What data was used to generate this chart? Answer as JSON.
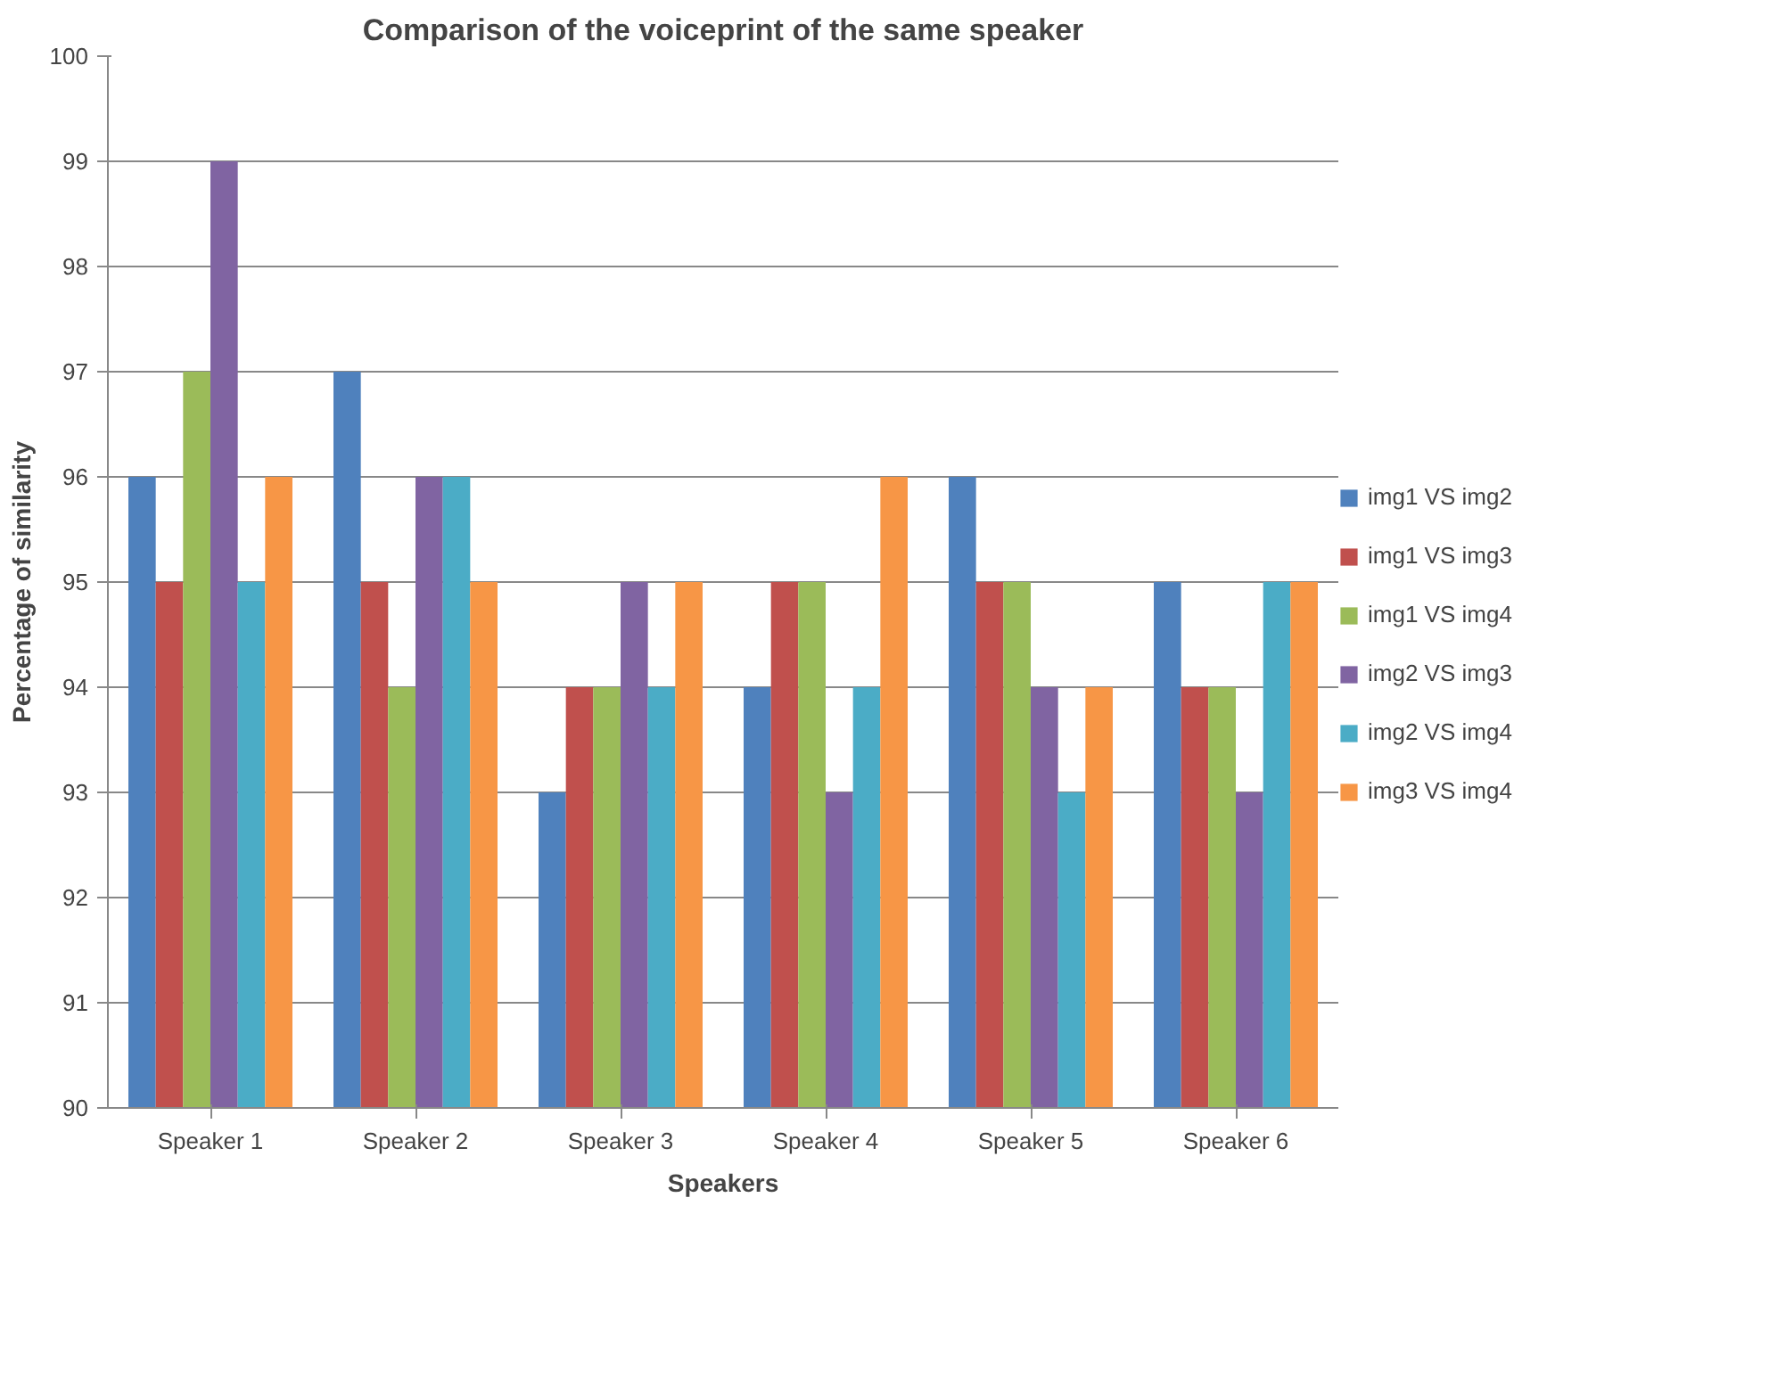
{
  "chart_data": {
    "type": "bar",
    "title": "Comparison of the voiceprint of the same speaker",
    "xlabel": "Speakers",
    "ylabel": "Percentage of similarity",
    "categories": [
      "Speaker 1",
      "Speaker 2",
      "Speaker 3",
      "Speaker 4",
      "Speaker 5",
      "Speaker 6"
    ],
    "series": [
      {
        "name": "img1 VS img2",
        "color": "#4f81bd",
        "values": [
          96,
          97,
          93,
          94,
          96,
          95
        ]
      },
      {
        "name": "img1 VS img3",
        "color": "#c0504d",
        "values": [
          95,
          95,
          94,
          95,
          95,
          94
        ]
      },
      {
        "name": "img1 VS img4",
        "color": "#9bbb59",
        "values": [
          97,
          94,
          94,
          95,
          95,
          94
        ]
      },
      {
        "name": "img2 VS img3",
        "color": "#8064a2",
        "values": [
          99,
          96,
          95,
          93,
          94,
          93
        ]
      },
      {
        "name": "img2 VS img4",
        "color": "#4bacc6",
        "values": [
          95,
          96,
          94,
          94,
          93,
          95
        ]
      },
      {
        "name": "img3 VS img4",
        "color": "#f79646",
        "values": [
          96,
          95,
          95,
          96,
          94,
          95
        ]
      }
    ],
    "ylim": [
      90,
      100
    ],
    "yticks": [
      90,
      91,
      92,
      93,
      94,
      95,
      96,
      97,
      98,
      99,
      100
    ],
    "grid": "y",
    "legend": "right"
  }
}
